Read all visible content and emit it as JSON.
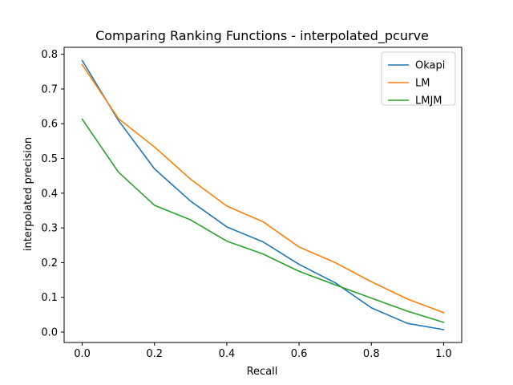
{
  "chart_data": {
    "type": "line",
    "title": "Comparing Ranking Functions - interpolated_pcurve",
    "xlabel": "Recall",
    "ylabel": "interpolated precision",
    "xlim": [
      -0.05,
      1.05
    ],
    "ylim": [
      -0.03,
      0.82
    ],
    "xticks": [
      0.0,
      0.2,
      0.4,
      0.6,
      0.8,
      1.0
    ],
    "xtick_labels": [
      "0.0",
      "0.2",
      "0.4",
      "0.6",
      "0.8",
      "1.0"
    ],
    "yticks": [
      0.0,
      0.1,
      0.2,
      0.3,
      0.4,
      0.5,
      0.6,
      0.7,
      0.8
    ],
    "ytick_labels": [
      "0.0",
      "0.1",
      "0.2",
      "0.3",
      "0.4",
      "0.5",
      "0.6",
      "0.7",
      "0.8"
    ],
    "grid": false,
    "legend_position": "top-right",
    "x": [
      0.0,
      0.1,
      0.2,
      0.3,
      0.4,
      0.5,
      0.6,
      0.7,
      0.8,
      0.9,
      1.0
    ],
    "series": [
      {
        "name": "Okapi",
        "color": "#1f77b4",
        "values": [
          0.782,
          0.61,
          0.47,
          0.377,
          0.303,
          0.26,
          0.195,
          0.142,
          0.07,
          0.025,
          0.007
        ]
      },
      {
        "name": "LM",
        "color": "#ff7f0e",
        "values": [
          0.77,
          0.615,
          0.533,
          0.44,
          0.363,
          0.318,
          0.245,
          0.2,
          0.145,
          0.095,
          0.056
        ]
      },
      {
        "name": "LMJM",
        "color": "#2ca02c",
        "values": [
          0.613,
          0.461,
          0.365,
          0.323,
          0.262,
          0.225,
          0.175,
          0.136,
          0.098,
          0.06,
          0.028
        ]
      }
    ]
  }
}
